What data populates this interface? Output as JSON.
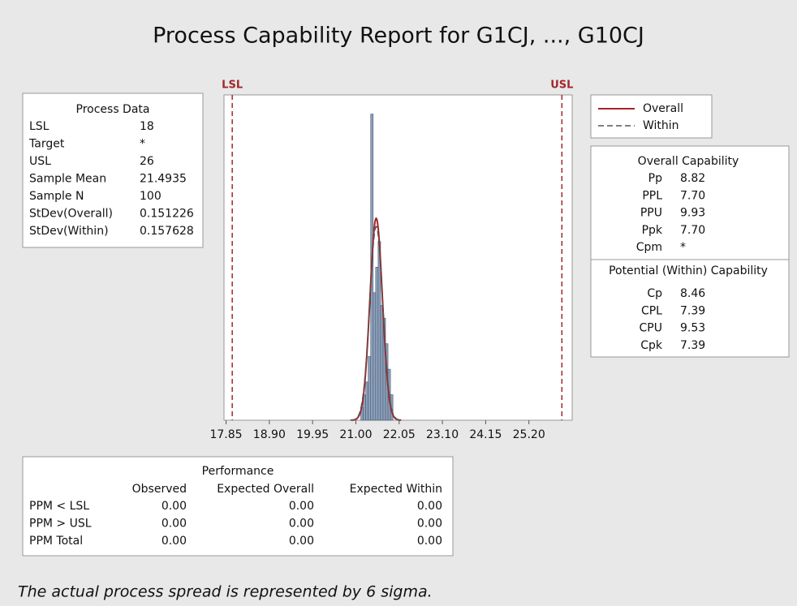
{
  "chart_data": {
    "type": "histogram",
    "title": "Process Capability Report for G1CJ, ..., G10CJ",
    "bins": [
      21.12,
      21.18,
      21.24,
      21.3,
      21.36,
      21.42,
      21.48,
      21.54,
      21.6,
      21.66,
      21.72,
      21.78,
      21.84,
      21.9
    ],
    "counts": [
      1,
      2,
      3,
      5,
      24,
      10,
      12,
      14,
      9,
      8,
      6,
      4,
      2
    ],
    "color": "#8ca0bb",
    "xlim": [
      17.8,
      26.25
    ],
    "ylim": [
      0,
      25.5
    ],
    "xticks": [
      17.85,
      {
        "value": 18.9,
        "label": "18.90"
      },
      19.95,
      {
        "value": 21,
        "label": "21.00"
      },
      22.05,
      {
        "value": 23.1,
        "label": "23.10"
      },
      24.15,
      {
        "value": 25.2,
        "label": "25.20"
      }
    ],
    "annotations": [
      "LSL",
      "USL"
    ],
    "spec_color": "#a3262a",
    "series": [
      {
        "name": "Overall",
        "color": "#a3262a"
      },
      {
        "name": "Within",
        "color": "#555555"
      }
    ]
  },
  "process_data": {
    "title": "Process Data",
    "rows": [
      {
        "label": "LSL",
        "value": 18
      },
      {
        "label": "Target",
        "value": "*"
      },
      {
        "label": "USL",
        "value": 26
      },
      {
        "label": "Sample Mean",
        "value": 21.4935
      },
      {
        "label": "Sample N",
        "value": 100
      },
      {
        "label": "StDev(Overall)",
        "value": 0.151226
      },
      {
        "label": "StDev(Within)",
        "value": 0.157628
      }
    ]
  },
  "overall_capability": {
    "title": "Overall Capability",
    "rows": [
      {
        "label": "Pp",
        "value": "8.82"
      },
      {
        "label": "PPL",
        "value": "7.70"
      },
      {
        "label": "PPU",
        "value": "9.93"
      },
      {
        "label": "Ppk",
        "value": "7.70"
      },
      {
        "label": "Cpm",
        "value": "*"
      }
    ]
  },
  "potential_capability": {
    "title": "Potential (Within) Capability",
    "rows": [
      {
        "label": "Cp",
        "value": "8.46"
      },
      {
        "label": "CPL",
        "value": "7.39"
      },
      {
        "label": "CPU",
        "value": "9.53"
      },
      {
        "label": "Cpk",
        "value": "7.39"
      }
    ]
  },
  "performance": {
    "title": "Performance",
    "columns": [
      "Observed",
      "Expected Overall",
      "Expected Within"
    ],
    "rows": [
      {
        "label": "PPM < LSL",
        "values": [
          "0.00",
          "0.00",
          "0.00"
        ]
      },
      {
        "label": "PPM > USL",
        "values": [
          "0.00",
          "0.00",
          "0.00"
        ]
      },
      {
        "label": "PPM Total",
        "values": [
          "0.00",
          "0.00",
          "0.00"
        ]
      }
    ]
  },
  "footnote": "The actual process spread is represented by 6 sigma."
}
